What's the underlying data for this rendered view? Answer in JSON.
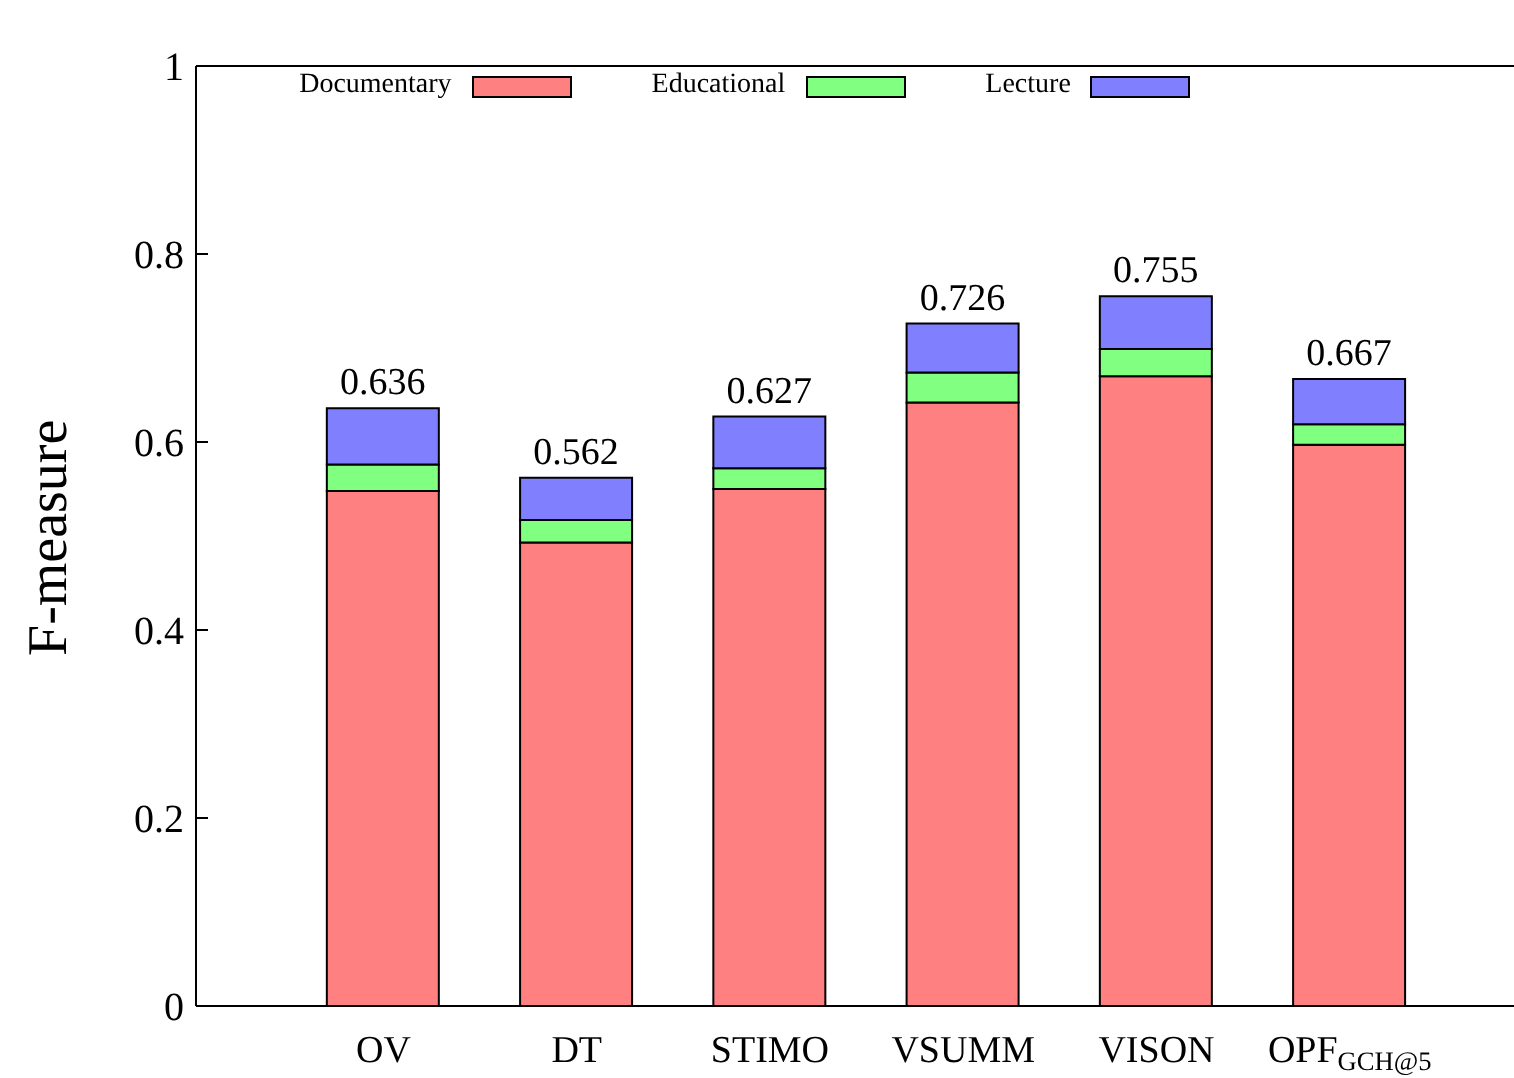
{
  "chart_data": {
    "type": "bar",
    "stacked": true,
    "ylabel": "F-measure",
    "categories": [
      "OV",
      "DT",
      "STIMO",
      "VSUMM",
      "VISON",
      "OPF$_{GCH@5}$"
    ],
    "series": [
      {
        "name": "Documentary",
        "color": "#ff8080",
        "values": [
          0.548,
          0.493,
          0.55,
          0.642,
          0.67,
          0.597
        ]
      },
      {
        "name": "Educational",
        "color": "#80ff80",
        "values": [
          0.028,
          0.024,
          0.022,
          0.032,
          0.029,
          0.022
        ]
      },
      {
        "name": "Lecture",
        "color": "#8080ff",
        "values": [
          0.06,
          0.045,
          0.055,
          0.052,
          0.056,
          0.048
        ]
      }
    ],
    "totals": [
      "0.636",
      "0.562",
      "0.627",
      "0.726",
      "0.755",
      "0.667"
    ],
    "ylim": [
      0,
      1
    ],
    "yticks": [
      0,
      0.2,
      0.4,
      0.6,
      0.8,
      1
    ],
    "grid": false,
    "legend": "top"
  }
}
